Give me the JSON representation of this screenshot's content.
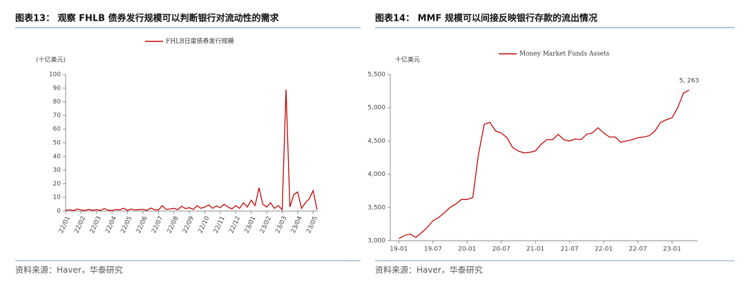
{
  "chart_data": [
    {
      "type": "line",
      "title": "图表13：  观察 FHLB 债券发行规模可以判断银行对流动性的需求",
      "y_label": "(十亿美元)",
      "source": "资料来源：Haver，华泰研究",
      "x": [
        0,
        0.25,
        0.5,
        0.75,
        1,
        1.25,
        1.5,
        1.75,
        2,
        2.25,
        2.5,
        2.75,
        3,
        3.25,
        3.5,
        3.75,
        4,
        4.25,
        4.5,
        4.75,
        5,
        5.25,
        5.5,
        5.75,
        6,
        6.25,
        6.5,
        6.75,
        7,
        7.25,
        7.5,
        7.75,
        8,
        8.25,
        8.5,
        8.75,
        9,
        9.25,
        9.5,
        9.75,
        10,
        10.25,
        10.5,
        10.75,
        11,
        11.25,
        11.5,
        11.75,
        12,
        12.25,
        12.5,
        12.75,
        13,
        13.25,
        13.5,
        13.75,
        14,
        14.25,
        14.5,
        14.75,
        15,
        15.25,
        15.5,
        15.75,
        16,
        16.25
      ],
      "series": [
        {
          "name": "FHLB日度债券发行规模",
          "color": "#c00000",
          "values": [
            0.5,
            1,
            0.3,
            1.5,
            0.8,
            0.4,
            1.2,
            0.6,
            1,
            0.5,
            1.8,
            0.7,
            0.4,
            1.2,
            0.9,
            2,
            0.6,
            1.5,
            0.8,
            1.1,
            1.3,
            0.5,
            2.2,
            1,
            0.8,
            4,
            1.2,
            1.5,
            2,
            1,
            3.5,
            1.8,
            2.5,
            1.2,
            4,
            2,
            3,
            4.5,
            2,
            3.8,
            2.5,
            5,
            3,
            1.5,
            4,
            2,
            6,
            3,
            8,
            4,
            17,
            5,
            3,
            6,
            2,
            4,
            1,
            89,
            3,
            12,
            14,
            2,
            6,
            9,
            15,
            1
          ]
        }
      ],
      "xlim": [
        0,
        16.3
      ],
      "xticks": [
        {
          "value": 0,
          "label": "22/01"
        },
        {
          "value": 1,
          "label": "22/02"
        },
        {
          "value": 2,
          "label": "22/03"
        },
        {
          "value": 3,
          "label": "22/04"
        },
        {
          "value": 4,
          "label": "22/05"
        },
        {
          "value": 5,
          "label": "22/06"
        },
        {
          "value": 6,
          "label": "22/07"
        },
        {
          "value": 7,
          "label": "22/08"
        },
        {
          "value": 8,
          "label": "22/09"
        },
        {
          "value": 9,
          "label": "22/10"
        },
        {
          "value": 10,
          "label": "22/11"
        },
        {
          "value": 11,
          "label": "22/12"
        },
        {
          "value": 12,
          "label": "23/01"
        },
        {
          "value": 13,
          "label": "23/02"
        },
        {
          "value": 14,
          "label": "23/03"
        },
        {
          "value": 15,
          "label": "23/04"
        },
        {
          "value": 16,
          "label": "23/05"
        }
      ],
      "ylim": [
        0,
        100
      ],
      "yticks": [
        0,
        10,
        20,
        30,
        40,
        50,
        60,
        70,
        80,
        90,
        100
      ]
    },
    {
      "type": "line",
      "title": "图表14：  MMF 规模可以间接反映银行存款的流出情况",
      "y_label": "十亿美元",
      "source": "资料来源：Haver，华泰研究",
      "annotation": "5, 263",
      "x": [
        0,
        1,
        2,
        3,
        4,
        5,
        6,
        7,
        8,
        9,
        10,
        11,
        12,
        13,
        14,
        15,
        16,
        17,
        18,
        19,
        20,
        21,
        22,
        23,
        24,
        25,
        26,
        27,
        28,
        29,
        30,
        31,
        32,
        33,
        34,
        35,
        36,
        37,
        38,
        39,
        40,
        41,
        42,
        43,
        44,
        45,
        46,
        47,
        48,
        49,
        50,
        51
      ],
      "series": [
        {
          "name": "Money Market Funds Assets",
          "color": "#c00000",
          "values": [
            3030,
            3080,
            3100,
            3050,
            3120,
            3200,
            3300,
            3350,
            3420,
            3500,
            3550,
            3620,
            3620,
            3650,
            4300,
            4750,
            4780,
            4650,
            4620,
            4550,
            4400,
            4350,
            4320,
            4330,
            4350,
            4450,
            4520,
            4520,
            4600,
            4520,
            4500,
            4530,
            4520,
            4600,
            4620,
            4700,
            4620,
            4560,
            4560,
            4480,
            4500,
            4520,
            4550,
            4560,
            4580,
            4650,
            4780,
            4820,
            4850,
            5000,
            5220,
            5263
          ]
        }
      ],
      "xlim": [
        -1.5,
        52.5
      ],
      "xticks": [
        {
          "value": 0,
          "label": "19-01"
        },
        {
          "value": 6,
          "label": "19-07"
        },
        {
          "value": 12,
          "label": "20-01"
        },
        {
          "value": 18,
          "label": "20-07"
        },
        {
          "value": 24,
          "label": "21-01"
        },
        {
          "value": 30,
          "label": "21-07"
        },
        {
          "value": 36,
          "label": "22-01"
        },
        {
          "value": 42,
          "label": "22-07"
        },
        {
          "value": 48,
          "label": "23-01"
        }
      ],
      "ylim": [
        3000,
        5500
      ],
      "yticks": [
        {
          "value": 3000,
          "label": "3,000"
        },
        {
          "value": 3500,
          "label": "3,500"
        },
        {
          "value": 4000,
          "label": "4,000"
        },
        {
          "value": 4500,
          "label": "4,500"
        },
        {
          "value": 5000,
          "label": "5,000"
        },
        {
          "value": 5500,
          "label": "5,500"
        }
      ]
    }
  ]
}
